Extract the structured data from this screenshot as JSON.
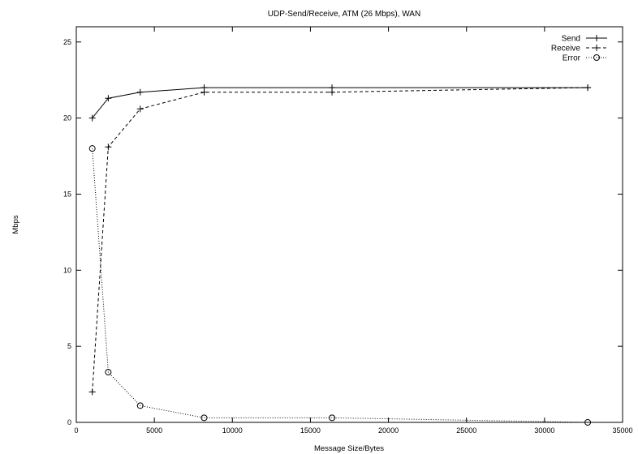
{
  "chart_data": {
    "type": "line",
    "title": "UDP-Send/Receive, ATM (26 Mbps), WAN",
    "xlabel": "Message Size/Bytes",
    "ylabel": "Mbps",
    "xlim": [
      0,
      35000
    ],
    "ylim": [
      0,
      26
    ],
    "xticks": [
      0,
      5000,
      10000,
      15000,
      20000,
      25000,
      30000,
      35000
    ],
    "yticks": [
      0,
      5,
      10,
      15,
      20,
      25
    ],
    "grid": false,
    "legend_position": "top-right",
    "series": [
      {
        "name": "Send",
        "line": "solid",
        "marker": "plus",
        "color": "#000000",
        "points": [
          [
            1024,
            20.0
          ],
          [
            2048,
            21.3
          ],
          [
            4096,
            21.7
          ],
          [
            8192,
            22.0
          ],
          [
            16384,
            22.0
          ],
          [
            32768,
            22.0
          ]
        ]
      },
      {
        "name": "Receive",
        "line": "dashed",
        "marker": "plus",
        "color": "#000000",
        "points": [
          [
            1024,
            2.0
          ],
          [
            2048,
            18.1
          ],
          [
            4096,
            20.6
          ],
          [
            8192,
            21.7
          ],
          [
            16384,
            21.7
          ],
          [
            32768,
            22.0
          ]
        ]
      },
      {
        "name": "Error",
        "line": "dotted",
        "marker": "circle",
        "color": "#000000",
        "points": [
          [
            1024,
            18.0
          ],
          [
            2048,
            3.3
          ],
          [
            4096,
            1.1
          ],
          [
            8192,
            0.3
          ],
          [
            16384,
            0.3
          ],
          [
            32768,
            0.0
          ]
        ]
      }
    ]
  }
}
